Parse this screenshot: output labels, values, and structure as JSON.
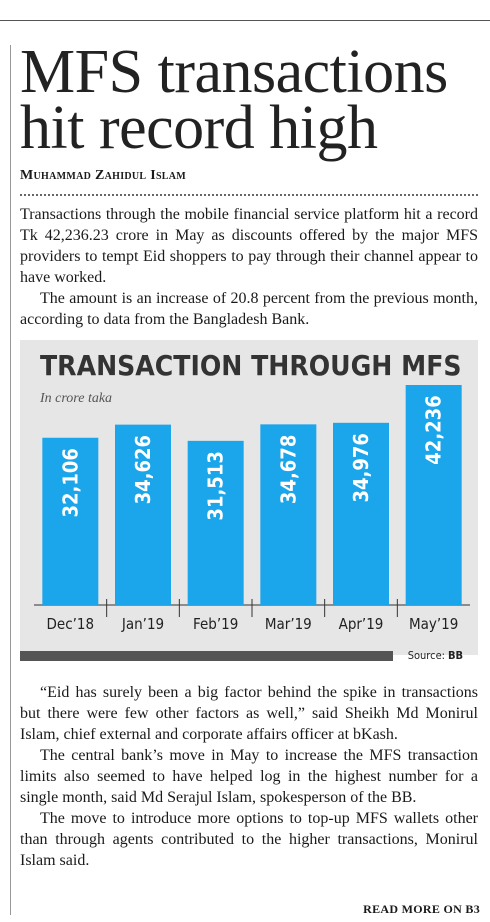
{
  "headline": [
    "MFS transactions",
    "hit record high"
  ],
  "byline": "Muhammad Zahidul Islam",
  "paragraphs_top": [
    "Transactions through the mobile financial service platform hit a record Tk 42,236.23 crore in May as discounts offered by the major MFS providers to tempt Eid shoppers to pay through their channel appear to have worked.",
    "The amount is an increase of 20.8 percent from the previous month, according to data from the Bangladesh Bank."
  ],
  "chart_data": {
    "type": "bar",
    "title": "TRANSACTION THROUGH MFS",
    "subtitle": "In crore taka",
    "categories": [
      "Dec’18",
      "Jan’19",
      "Feb’19",
      "Mar’19",
      "Apr’19",
      "May’19"
    ],
    "values": [
      32106,
      34626,
      31513,
      34678,
      34976,
      42236
    ],
    "value_labels": [
      "32,106",
      "34,626",
      "31,513",
      "34,678",
      "34,976",
      "42,236"
    ],
    "color": "#1ba5ea",
    "source_label": "Source:",
    "source": "BB"
  },
  "paragraphs_bottom": [
    "“Eid has surely been a big factor behind the spike in transactions but there were few other factors as well,” said Sheikh Md Monirul Islam, chief external and corporate affairs officer at bKash.",
    "The central bank’s move in May to increase the MFS transaction limits also seemed to have helped log in the highest number for a single month, said Md Serajul Islam, spokesperson of the BB.",
    "The move to introduce more options to top-up MFS wallets other than through agents contributed to the higher transactions, Monirul Islam said."
  ],
  "footer": "READ MORE ON B3"
}
